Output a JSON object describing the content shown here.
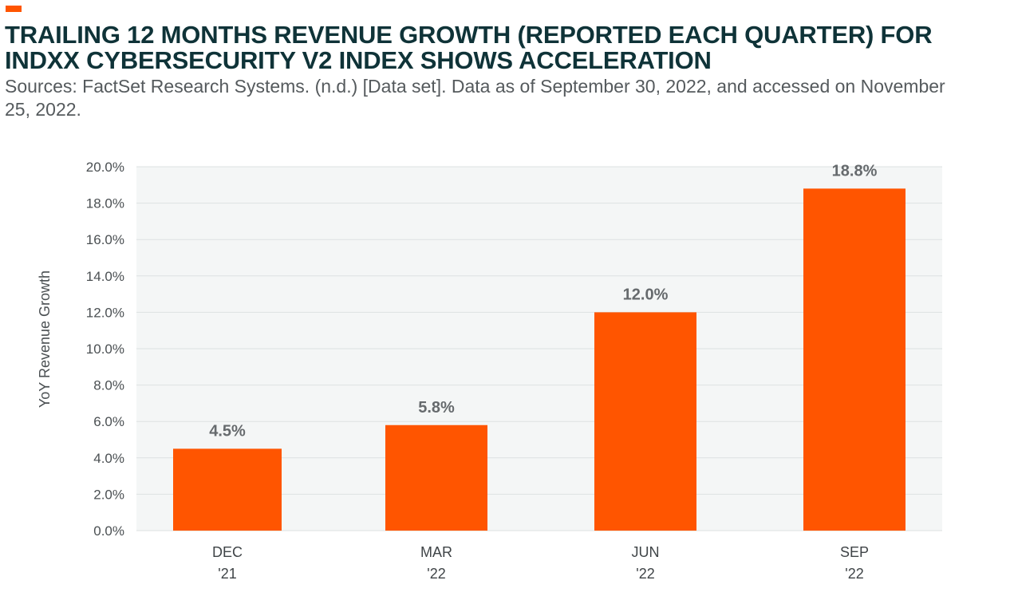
{
  "header": {
    "title": "TRAILING 12 MONTHS REVENUE GROWTH (REPORTED EACH QUARTER) FOR INDXX CYBERSECURITY V2 INDEX SHOWS ACCELERATION",
    "source": "Sources: FactSet Research Systems. (n.d.) [Data set]. Data as of September 30, 2022, and accessed on November 25, 2022."
  },
  "colors": {
    "accent": "#ff5500",
    "title": "#0f3338",
    "plot_background": "#f4f6f6",
    "gridline": "#dde1e2"
  },
  "chart_data": {
    "type": "bar",
    "title": "TRAILING 12 MONTHS REVENUE GROWTH (REPORTED EACH QUARTER) FOR INDXX CYBERSECURITY V2 INDEX SHOWS ACCELERATION",
    "categories": [
      [
        "DEC",
        "'21"
      ],
      [
        "MAR",
        "'22"
      ],
      [
        "JUN",
        "'22"
      ],
      [
        "SEP",
        "'22"
      ]
    ],
    "values": [
      4.5,
      5.8,
      12.0,
      18.8
    ],
    "data_labels": [
      "4.5%",
      "5.8%",
      "12.0%",
      "18.8%"
    ],
    "xlabel": "",
    "ylabel": "YoY Revenue Growth",
    "ylim": [
      0,
      20
    ],
    "yticks": [
      0,
      2,
      4,
      6,
      8,
      10,
      12,
      14,
      16,
      18,
      20
    ],
    "ytick_labels": [
      "0.0%",
      "2.0%",
      "4.0%",
      "6.0%",
      "8.0%",
      "10.0%",
      "12.0%",
      "14.0%",
      "16.0%",
      "18.0%",
      "20.0%"
    ],
    "grid": true,
    "legend": "none",
    "bar_color": "#ff5500"
  }
}
